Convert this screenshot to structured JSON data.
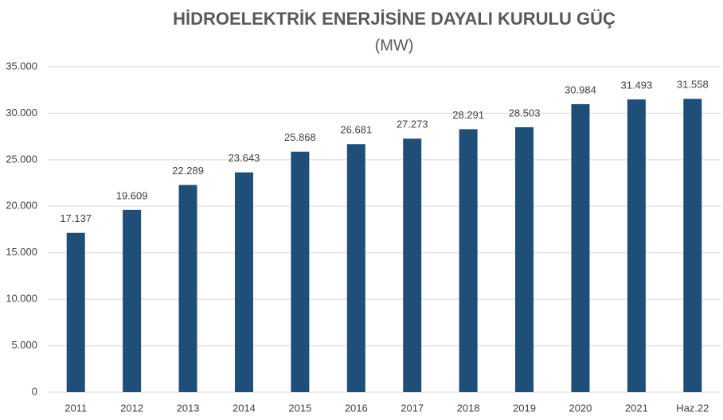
{
  "chart_data": {
    "type": "bar",
    "title": "HİDROELEKTRİK ENERJİSİNE DAYALI KURULU GÜÇ",
    "subtitle": "(MW)",
    "categories": [
      "2011",
      "2012",
      "2013",
      "2014",
      "2015",
      "2016",
      "2017",
      "2018",
      "2019",
      "2020",
      "2021",
      "Haz.22"
    ],
    "values": [
      17137,
      19609,
      22289,
      23643,
      25868,
      26681,
      27273,
      28291,
      28503,
      30984,
      31493,
      31558
    ],
    "value_labels": [
      "17.137",
      "19.609",
      "22.289",
      "23.643",
      "25.868",
      "26.681",
      "27.273",
      "28.291",
      "28.503",
      "30.984",
      "31.493",
      "31.558"
    ],
    "color": "#1f4e79",
    "ylim": [
      0,
      35000
    ],
    "yticks": [
      0,
      {
        "value": 5000,
        "label": "5.000"
      },
      {
        "value": 10000,
        "label": "10.000"
      },
      {
        "value": 15000,
        "label": "15.000"
      },
      {
        "value": 20000,
        "label": "20.000"
      },
      {
        "value": 25000,
        "label": "25.000"
      },
      {
        "value": 30000,
        "label": "30.000"
      },
      {
        "value": 35000,
        "label": "35.000"
      }
    ],
    "grid": true
  }
}
